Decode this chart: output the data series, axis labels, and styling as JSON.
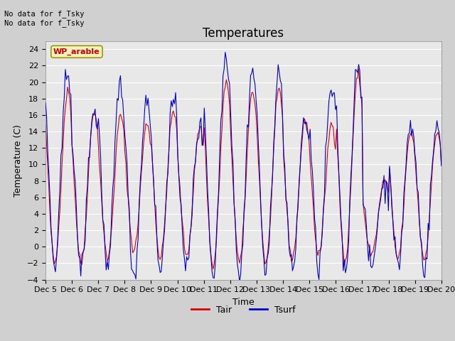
{
  "title": "Temperatures",
  "xlabel": "Time",
  "ylabel": "Temperature (C)",
  "ylim": [
    -4,
    25
  ],
  "yticks": [
    -4,
    -2,
    0,
    2,
    4,
    6,
    8,
    10,
    12,
    14,
    16,
    18,
    20,
    22,
    24
  ],
  "xtick_labels": [
    "Dec 5",
    "Dec 6",
    "Dec 7",
    "Dec 8",
    "Dec 9",
    "Dec 10",
    "Dec 11",
    "Dec 12",
    "Dec 13",
    "Dec 14",
    "Dec 15",
    "Dec 16",
    "Dec 17",
    "Dec 18",
    "Dec 19",
    "Dec 20"
  ],
  "line_color_tair": "#dd0000",
  "line_color_tsurf": "#0000cc",
  "ax_facecolor": "#e8e8e8",
  "fig_facecolor": "#d0d0d0",
  "grid_color": "#ffffff",
  "annotation_text": "No data for f_Tsky\nNo data for f_Tsky",
  "legend_label": "WP_arable",
  "legend_label_tair": "Tair",
  "legend_label_tsurf": "Tsurf",
  "title_fontsize": 12,
  "axis_fontsize": 9,
  "tick_fontsize": 8
}
